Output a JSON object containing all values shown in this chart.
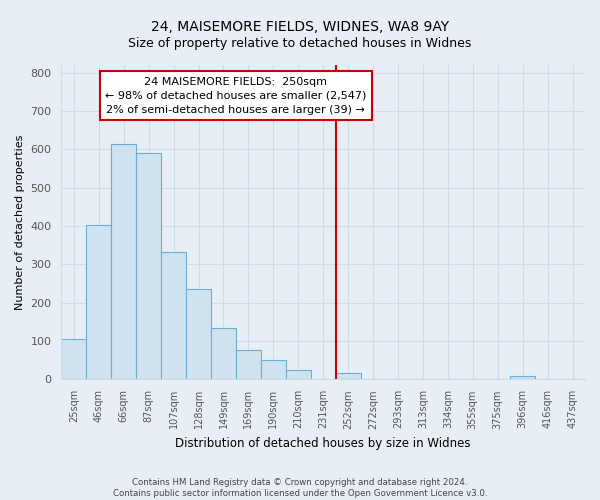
{
  "title": "24, MAISEMORE FIELDS, WIDNES, WA8 9AY",
  "subtitle": "Size of property relative to detached houses in Widnes",
  "xlabel": "Distribution of detached houses by size in Widnes",
  "ylabel": "Number of detached properties",
  "bar_labels": [
    "25sqm",
    "46sqm",
    "66sqm",
    "87sqm",
    "107sqm",
    "128sqm",
    "149sqm",
    "169sqm",
    "190sqm",
    "210sqm",
    "231sqm",
    "252sqm",
    "272sqm",
    "293sqm",
    "313sqm",
    "334sqm",
    "355sqm",
    "375sqm",
    "396sqm",
    "416sqm",
    "437sqm"
  ],
  "bar_values": [
    105,
    403,
    614,
    590,
    332,
    237,
    135,
    77,
    50,
    25,
    0,
    18,
    0,
    0,
    0,
    0,
    0,
    0,
    8,
    0,
    0
  ],
  "bar_color": "#cfe2f0",
  "bar_edge_color": "#6aaed6",
  "vline_color": "#cc0000",
  "annotation_title": "24 MAISEMORE FIELDS:  250sqm",
  "annotation_line1": "← 98% of detached houses are smaller (2,547)",
  "annotation_line2": "2% of semi-detached houses are larger (39) →",
  "annotation_box_color": "#ffffff",
  "annotation_box_edge": "#cc0000",
  "ylim": [
    0,
    820
  ],
  "yticks": [
    0,
    100,
    200,
    300,
    400,
    500,
    600,
    700,
    800
  ],
  "grid_color": "#d0dce8",
  "footer_line1": "Contains HM Land Registry data © Crown copyright and database right 2024.",
  "footer_line2": "Contains public sector information licensed under the Open Government Licence v3.0.",
  "bg_color": "#e8eef5"
}
